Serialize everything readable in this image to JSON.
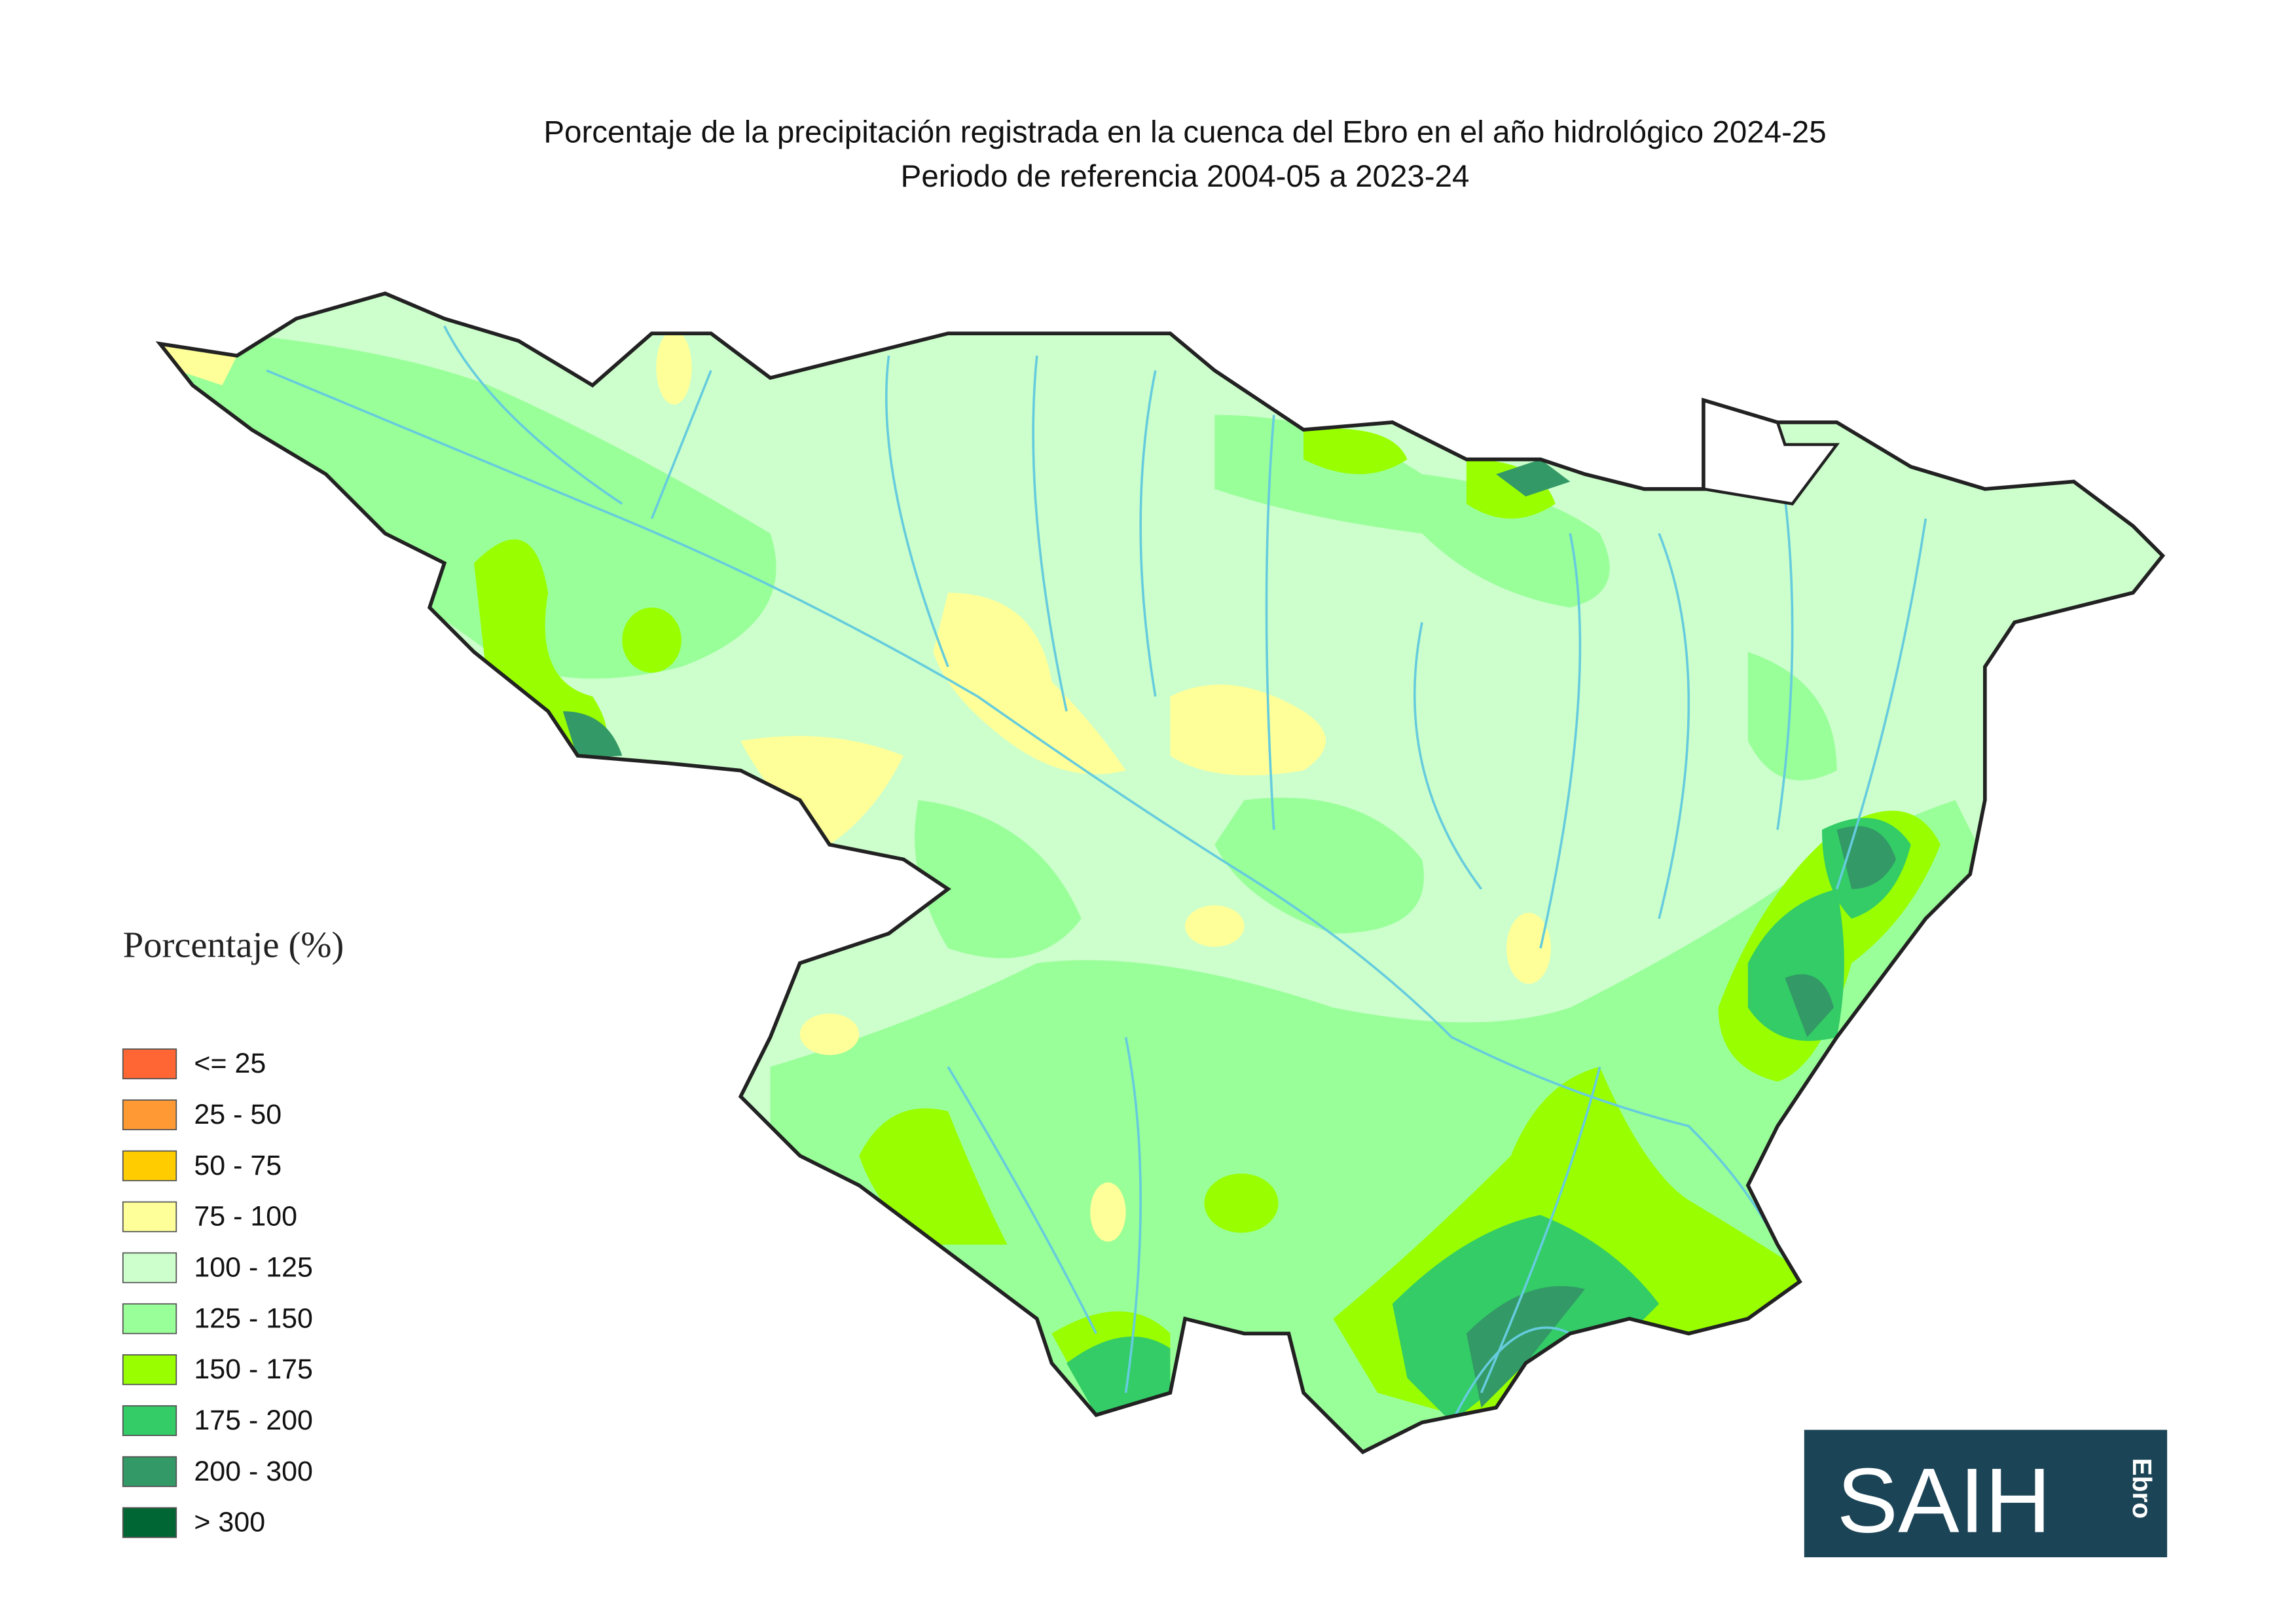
{
  "header": {
    "title": "Porcentaje de la precipitación registrada en la cuenca del Ebro en el año hidrológico 2024-25",
    "subtitle": "Periodo de referencia 2004-05 a 2023-24"
  },
  "legend": {
    "title": "Porcentaje (%)",
    "items": [
      {
        "label": "<= 25",
        "color": "#ff6633"
      },
      {
        "label": "25 - 50",
        "color": "#ff9933"
      },
      {
        "label": "50 - 75",
        "color": "#ffcc00"
      },
      {
        "label": "75 - 100",
        "color": "#ffff99"
      },
      {
        "label": "100 - 125",
        "color": "#ccffcc"
      },
      {
        "label": "125 - 150",
        "color": "#99ff99"
      },
      {
        "label": "150 - 175",
        "color": "#99ff00"
      },
      {
        "label": "175 - 200",
        "color": "#33cc66"
      },
      {
        "label": "200 - 300",
        "color": "#339966"
      },
      {
        "label": "> 300",
        "color": "#006633"
      }
    ]
  },
  "logo": {
    "text": "SAIH",
    "subtext": "Ebro"
  }
}
